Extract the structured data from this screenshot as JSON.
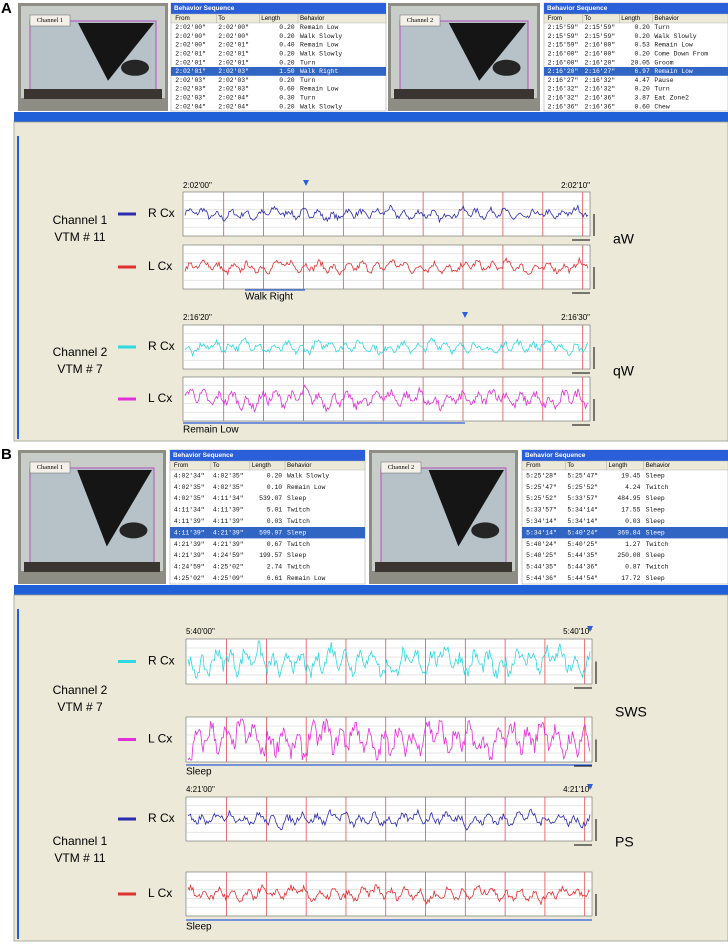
{
  "panels": [
    {
      "label": "A",
      "videos": [
        {
          "label": "Channel 1"
        },
        {
          "label": "Channel 2"
        }
      ],
      "tables": [
        {
          "title": "Behavior Sequence",
          "columns": [
            "From",
            "To",
            "Length",
            "Behavior"
          ],
          "selected_row": 5,
          "rows": [
            [
              "2:02'00\"",
              "2:02'00\"",
              "0.20",
              "Remain Low"
            ],
            [
              "2:02'00\"",
              "2:02'00\"",
              "0.20",
              "Walk Slowly"
            ],
            [
              "2:02'00\"",
              "2:02'01\"",
              "0.40",
              "Remain Low"
            ],
            [
              "2:02'01\"",
              "2:02'01\"",
              "0.20",
              "Walk Slowly"
            ],
            [
              "2:02'01\"",
              "2:02'01\"",
              "0.20",
              "Turn"
            ],
            [
              "2:02'01\"",
              "2:02'03\"",
              "1.50",
              "Walk Right"
            ],
            [
              "2:02'03\"",
              "2:02'03\"",
              "0.20",
              "Turn"
            ],
            [
              "2:02'03\"",
              "2:02'03\"",
              "0.60",
              "Remain Low"
            ],
            [
              "2:02'03\"",
              "2:02'04\"",
              "0.30",
              "Turn"
            ],
            [
              "2:02'04\"",
              "2:02'04\"",
              "0.20",
              "Walk Slowly"
            ]
          ]
        },
        {
          "title": "Behavior Sequence",
          "columns": [
            "From",
            "To",
            "Length",
            "Behavior"
          ],
          "selected_row": 5,
          "rows": [
            [
              "2:15'59\"",
              "2:15'59\"",
              "0.20",
              "Turn"
            ],
            [
              "2:15'59\"",
              "2:15'59\"",
              "0.20",
              "Walk Slowly"
            ],
            [
              "2:15'59\"",
              "2:16'00\"",
              "0.53",
              "Remain Low"
            ],
            [
              "2:16'00\"",
              "2:16'00\"",
              "0.20",
              "Come Down From"
            ],
            [
              "2:16'00\"",
              "2:16'20\"",
              "20.05",
              "Groom"
            ],
            [
              "2:16'20\"",
              "2:16'27\"",
              "6.97",
              "Remain Low"
            ],
            [
              "2:16'27\"",
              "2:16'32\"",
              "4.47",
              "Pause"
            ],
            [
              "2:16'32\"",
              "2:16'32\"",
              "0.20",
              "Turn"
            ],
            [
              "2:16'32\"",
              "2:16'36\"",
              "3.87",
              "Eat Zone2"
            ],
            [
              "2:16'36\"",
              "2:16'36\"",
              "0.60",
              "Chew"
            ]
          ]
        }
      ],
      "groups": [
        {
          "channel": "Channel 1",
          "vtm": "VTM # 11",
          "start": "2:02'00\"",
          "end": "2:02'10\"",
          "state": "aW",
          "behavior": "Walk Right",
          "traces": [
            {
              "label": "R Cx",
              "color": "#2b2bb0"
            },
            {
              "label": "L Cx",
              "color": "#e03030"
            }
          ]
        },
        {
          "channel": "Channel 2",
          "vtm": "VTM # 7",
          "start": "2:16'20\"",
          "end": "2:16'30\"",
          "state": "qW",
          "behavior": "Remain Low",
          "traces": [
            {
              "label": "R Cx",
              "color": "#30d8e0"
            },
            {
              "label": "L Cx",
              "color": "#e030d8"
            }
          ]
        }
      ]
    },
    {
      "label": "B",
      "videos": [
        {
          "label": "Channel 1"
        },
        {
          "label": "Channel 2"
        }
      ],
      "tables": [
        {
          "title": "Behavior Sequence",
          "columns": [
            "From",
            "To",
            "Length",
            "Behavior"
          ],
          "selected_row": 5,
          "rows": [
            [
              "4:02'34\"",
              "4:02'35\"",
              "0.20",
              "Walk Slowly"
            ],
            [
              "4:02'35\"",
              "4:02'35\"",
              "0.10",
              "Remain Low"
            ],
            [
              "4:02'35\"",
              "4:11'34\"",
              "539.07",
              "Sleep"
            ],
            [
              "4:11'34\"",
              "4:11'39\"",
              "5.01",
              "Twitch"
            ],
            [
              "4:11'39\"",
              "4:11'39\"",
              "0.03",
              "Twitch"
            ],
            [
              "4:11'39\"",
              "4:21'39\"",
              "599.97",
              "Sleep"
            ],
            [
              "4:21'39\"",
              "4:21'39\"",
              "0.67",
              "Twitch"
            ],
            [
              "4:21'39\"",
              "4:24'59\"",
              "199.57",
              "Sleep"
            ],
            [
              "4:24'59\"",
              "4:25'02\"",
              "2.74",
              "Twitch"
            ],
            [
              "4:25'02\"",
              "4:25'09\"",
              "6.61",
              "Remain Low"
            ]
          ]
        },
        {
          "title": "Behavior Sequence",
          "columns": [
            "From",
            "To",
            "Length",
            "Behavior"
          ],
          "selected_row": 5,
          "rows": [
            [
              "5:25'28\"",
              "5:25'47\"",
              "19.45",
              "Sleep"
            ],
            [
              "5:25'47\"",
              "5:25'52\"",
              "4.24",
              "Twitch"
            ],
            [
              "5:25'52\"",
              "5:33'57\"",
              "484.95",
              "Sleep"
            ],
            [
              "5:33'57\"",
              "5:34'14\"",
              "17.55",
              "Sleep"
            ],
            [
              "5:34'14\"",
              "5:34'14\"",
              "0.03",
              "Sleep"
            ],
            [
              "5:34'14\"",
              "5:40'24\"",
              "369.84",
              "Sleep"
            ],
            [
              "5:40'24\"",
              "5:40'25\"",
              "1.27",
              "Twitch"
            ],
            [
              "5:40'25\"",
              "5:44'35\"",
              "250.08",
              "Sleep"
            ],
            [
              "5:44'35\"",
              "5:44'36\"",
              "0.87",
              "Twitch"
            ],
            [
              "5:44'36\"",
              "5:44'54\"",
              "17.72",
              "Sleep"
            ]
          ]
        }
      ],
      "groups": [
        {
          "channel": "Channel 2",
          "vtm": "VTM # 7",
          "start": "5:40'00\"",
          "end": "5:40'10\"",
          "state": "SWS",
          "behavior": "Sleep",
          "traces": [
            {
              "label": "R Cx",
              "color": "#30d8e0"
            },
            {
              "label": "L Cx",
              "color": "#e030d8"
            }
          ]
        },
        {
          "channel": "Channel 1",
          "vtm": "VTM # 11",
          "start": "4:21'00\"",
          "end": "4:21'10\"",
          "state": "PS",
          "behavior": "Sleep",
          "traces": [
            {
              "label": "R Cx",
              "color": "#2b2bb0"
            },
            {
              "label": "L Cx",
              "color": "#e03030"
            }
          ]
        }
      ]
    }
  ]
}
